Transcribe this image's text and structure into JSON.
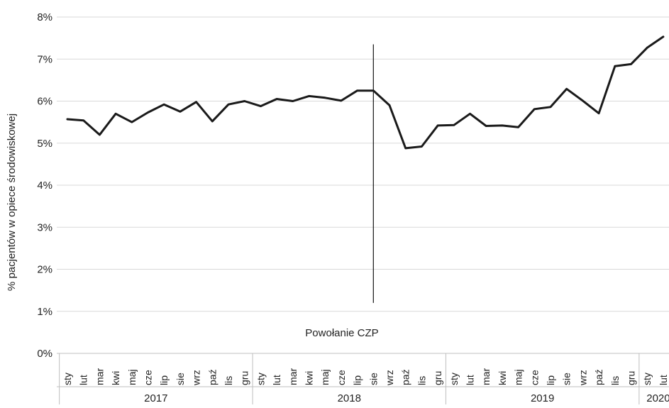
{
  "chart_data": {
    "type": "line",
    "title": "",
    "ylabel": "% pacjentów w opiece środowiskowej",
    "xlabel": "",
    "ylim": [
      0,
      8
    ],
    "yticks": [
      "0%",
      "1%",
      "2%",
      "3%",
      "4%",
      "5%",
      "6%",
      "7%",
      "8%"
    ],
    "grid": true,
    "months": [
      "sty",
      "lut",
      "mar",
      "kwi",
      "maj",
      "cze",
      "lip",
      "sie",
      "wrz",
      "paź",
      "lis",
      "gru",
      "sty",
      "lut",
      "mar",
      "kwi",
      "maj",
      "cze",
      "lip",
      "sie",
      "wrz",
      "paź",
      "lis",
      "gru",
      "sty",
      "lut",
      "mar",
      "kwi",
      "maj",
      "cze",
      "lip",
      "sie",
      "wrz",
      "paź",
      "lis",
      "gru",
      "sty",
      "lut"
    ],
    "years": [
      {
        "label": "2017",
        "start": 0,
        "count": 12
      },
      {
        "label": "2018",
        "start": 12,
        "count": 12
      },
      {
        "label": "2019",
        "start": 24,
        "count": 12
      },
      {
        "label": "2020",
        "start": 36,
        "count": 2
      }
    ],
    "series": [
      {
        "color": "#1a1a1a",
        "values": [
          5.57,
          5.54,
          5.2,
          5.7,
          5.5,
          5.73,
          5.92,
          5.75,
          5.98,
          5.52,
          5.92,
          6.0,
          5.88,
          6.05,
          6.0,
          6.12,
          6.08,
          6.01,
          6.25,
          6.25,
          5.9,
          4.88,
          4.92,
          5.42,
          5.43,
          5.7,
          5.41,
          5.42,
          5.38,
          5.81,
          5.86,
          6.29,
          6.01,
          5.71,
          6.83,
          6.88,
          7.27,
          7.53
        ]
      }
    ],
    "annotation": {
      "label": "Powołanie CZP",
      "at_index": 19,
      "y_from": 1.2,
      "y_to": 7.35
    }
  }
}
